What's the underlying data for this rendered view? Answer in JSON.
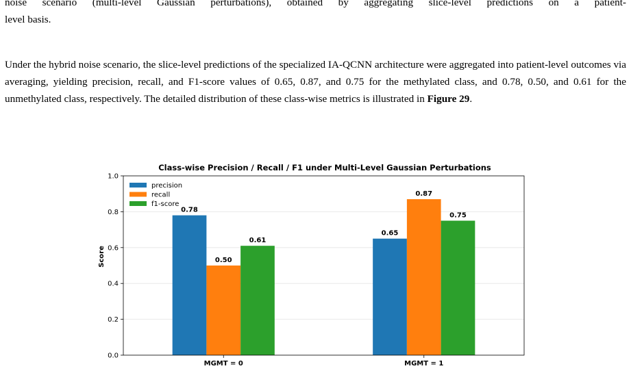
{
  "paragraphs": {
    "p1": {
      "line1": "noise scenario (multi-level Gaussian perturbations), obtained by aggregating slice-level predictions on a patient-",
      "line2": "level basis."
    },
    "p2": {
      "text": "Under the hybrid noise scenario, the slice-level predictions of the specialized IA-QCNN architecture were aggregated into patient-level outcomes via averaging, yielding precision, recall, and F1-score values of 0.65, 0.87, and 0.75 for the methylated class, and 0.78, 0.50, and 0.61 for the unmethylated class, respectively. The detailed distribution of these class-wise metrics is illustrated in ",
      "figure_ref": "Figure 29",
      "tail": "."
    }
  },
  "chart_data": {
    "type": "bar",
    "title": "Class-wise Precision / Recall / F1 under Multi-Level Gaussian Perturbations",
    "xlabel": "",
    "ylabel": "Score",
    "categories": [
      "MGMT = 0",
      "MGMT = 1"
    ],
    "series": [
      {
        "name": "precision",
        "values": [
          0.78,
          0.65
        ],
        "labels": [
          "0.78",
          "0.65"
        ],
        "color": "#1f77b4"
      },
      {
        "name": "recall",
        "values": [
          0.5,
          0.87
        ],
        "labels": [
          "0.50",
          "0.87"
        ],
        "color": "#ff7f0e"
      },
      {
        "name": "f1-score",
        "values": [
          0.61,
          0.75
        ],
        "labels": [
          "0.61",
          "0.75"
        ],
        "color": "#2ca02c"
      }
    ],
    "ylim": [
      0.0,
      1.0
    ],
    "yticks": [
      "0.0",
      "0.2",
      "0.4",
      "0.6",
      "0.8",
      "1.0"
    ],
    "grid": "horizontal",
    "legend": "top-left"
  }
}
